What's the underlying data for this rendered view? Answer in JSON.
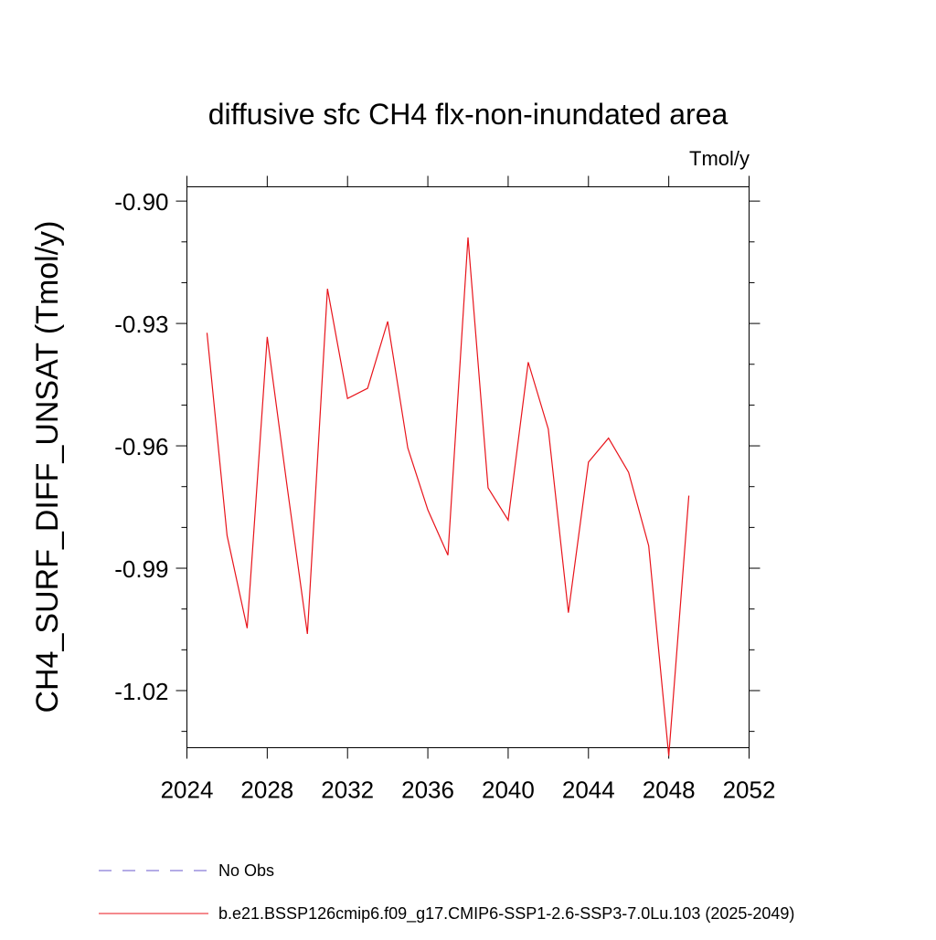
{
  "chart_data": {
    "type": "line",
    "title": "diffusive sfc CH4 flx-non-inundated area",
    "units_label": "Tmol/y",
    "ylabel": "CH4_SURF_DIFF_UNSAT  (Tmol/y)",
    "xlabel": "",
    "xlim": [
      2024,
      2052
    ],
    "ylim": [
      -1.034,
      -0.8965
    ],
    "x_ticks": [
      "2024",
      "2028",
      "2032",
      "2036",
      "2040",
      "2044",
      "2048",
      "2052"
    ],
    "y_ticks": [
      "-0.90",
      "-0.93",
      "-0.96",
      "-0.99",
      "-1.02"
    ],
    "grid": false,
    "legend_placement": "bottom-left",
    "series": [
      {
        "name": "b.e21.BSSP126cmip6.f09_g17.CMIP6-SSP1-2.6-SSP3-7.0Lu.103 (2025-2049)",
        "color": "#e8141b",
        "style": "solid",
        "x": [
          2025,
          2026,
          2027,
          2028,
          2029,
          2030,
          2031,
          2032,
          2033,
          2034,
          2035,
          2036,
          2037,
          2038,
          2039,
          2040,
          2041,
          2042,
          2043,
          2044,
          2045,
          2046,
          2047,
          2048,
          2049
        ],
        "values": [
          -0.9323,
          -0.982,
          -1.0047,
          -0.9333,
          -0.9703,
          -1.0061,
          -0.9215,
          -0.9484,
          -0.9459,
          -0.9295,
          -0.9605,
          -0.9757,
          -0.9868,
          -0.9089,
          -0.9703,
          -0.9782,
          -0.9395,
          -0.9559,
          -1.0009,
          -0.964,
          -0.9581,
          -0.9665,
          -0.9845,
          -1.036,
          -0.9722
        ]
      }
    ],
    "legend": [
      {
        "label": "No Obs",
        "color": "#6a5acd",
        "style": "dashed"
      },
      {
        "label": "b.e21.BSSP126cmip6.f09_g17.CMIP6-SSP1-2.6-SSP3-7.0Lu.103 (2025-2049)",
        "color": "#e8141b",
        "style": "solid"
      }
    ]
  }
}
